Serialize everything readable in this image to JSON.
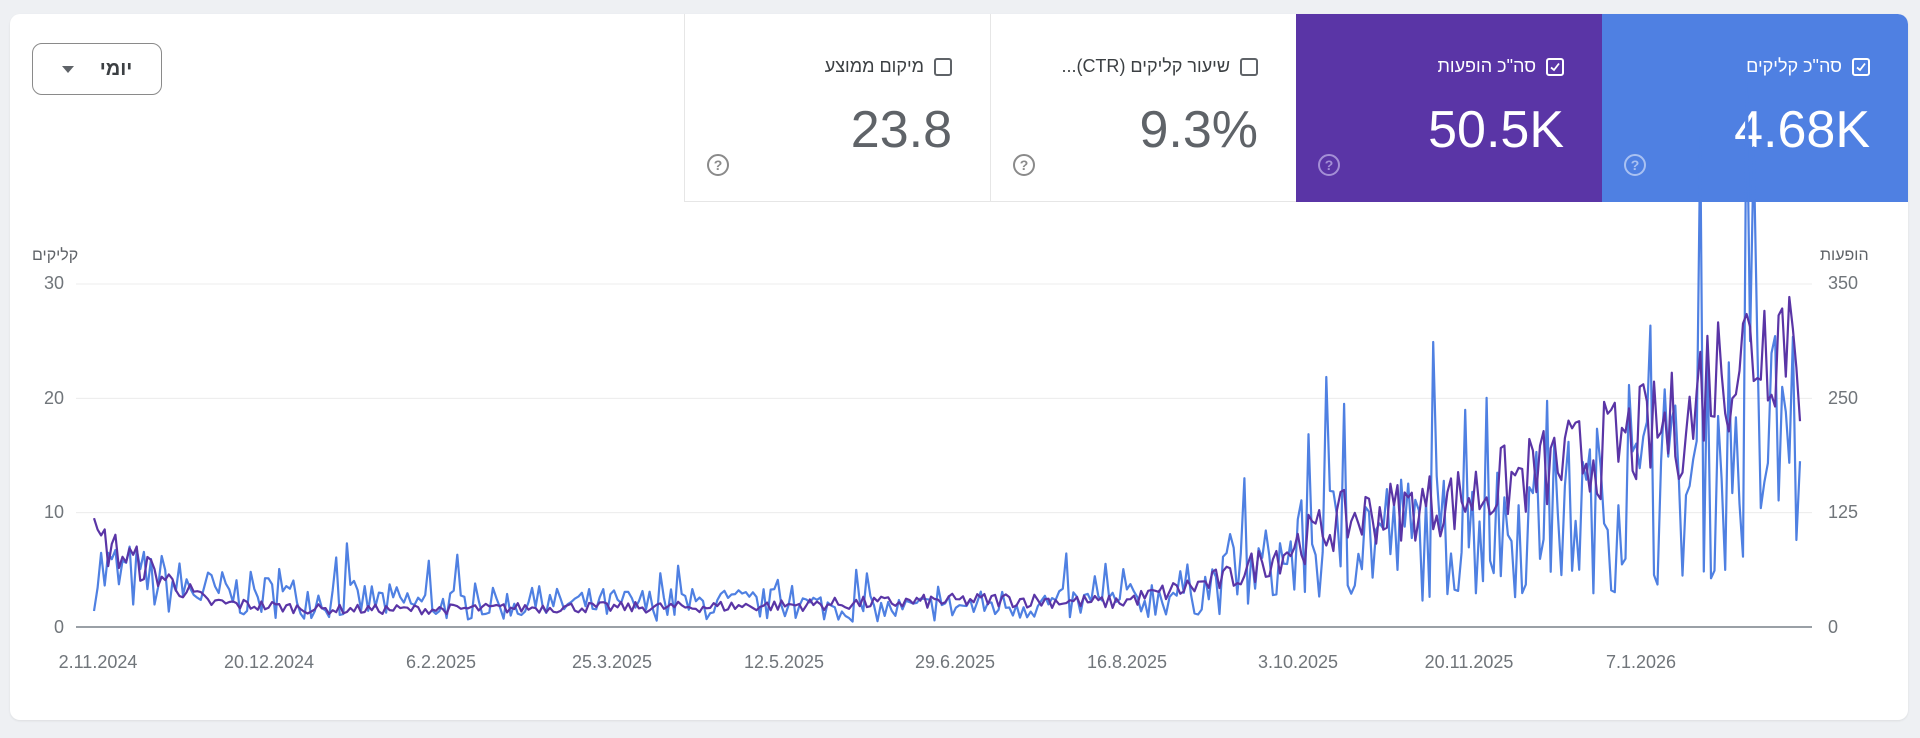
{
  "controls": {
    "granularity_label": "יומי"
  },
  "cards": [
    {
      "id": "clicks",
      "title": "סה\"כ קליקים",
      "value": "4.68K",
      "checked": true,
      "color": "#4f80e2"
    },
    {
      "id": "impressions",
      "title": "סה\"כ הופעות",
      "value": "50.5K",
      "checked": true,
      "color": "#5a35a6"
    },
    {
      "id": "ctr",
      "title": "שיעור קליקים (CTR)...",
      "value": "9.3%",
      "checked": false
    },
    {
      "id": "position",
      "title": "מיקום ממוצע",
      "value": "23.8",
      "checked": false
    }
  ],
  "help_glyph": "?",
  "chart_data": {
    "type": "line",
    "title": "",
    "xlabel": "",
    "ylabel_left": "קליקים",
    "ylabel_right": "הופעות",
    "y_left_ticks": [
      "0",
      "10",
      "20",
      "30"
    ],
    "y_right_ticks": [
      "0",
      "125",
      "250",
      "350"
    ],
    "ylim_left": [
      0,
      30
    ],
    "ylim_right": [
      0,
      350
    ],
    "x_tick_labels": [
      "2.11.2024",
      "20.12.2024",
      "6.2.2025",
      "25.3.2025",
      "12.5.2025",
      "29.6.2025",
      "16.8.2025",
      "3.10.2025",
      "20.11.2025",
      "7.1.2026"
    ],
    "grid": true,
    "legend_position": "cards-top",
    "series": [
      {
        "name": "סה\"כ קליקים",
        "axis": "left",
        "color": "#4f80e2",
        "monthly_approx": [
          {
            "period": "11.2024",
            "value": 5
          },
          {
            "period": "12.2024",
            "value": 3
          },
          {
            "period": "1.2025",
            "value": 2.5
          },
          {
            "period": "2.2025",
            "value": 2
          },
          {
            "period": "3.2025",
            "value": 2
          },
          {
            "period": "4.2025",
            "value": 2
          },
          {
            "period": "5.2025",
            "value": 2
          },
          {
            "period": "6.2025",
            "value": 1.5
          },
          {
            "period": "7.2025",
            "value": 2
          },
          {
            "period": "8.2025",
            "value": 2
          },
          {
            "period": "9.2025",
            "value": 4
          },
          {
            "period": "10.2025",
            "value": 8
          },
          {
            "period": "11.2025",
            "value": 8
          },
          {
            "period": "12.2025",
            "value": 10
          },
          {
            "period": "1.2026",
            "value": 12
          },
          {
            "period": "2.2026",
            "value": 15
          }
        ],
        "peak": 21,
        "last": 14.5
      },
      {
        "name": "סה\"כ הופעות",
        "axis": "right",
        "color": "#5a35a6",
        "monthly_approx": [
          {
            "period": "11.2024",
            "value": 90
          },
          {
            "period": "12.2024",
            "value": 25
          },
          {
            "period": "1.2025",
            "value": 18
          },
          {
            "period": "2.2025",
            "value": 18
          },
          {
            "period": "3.2025",
            "value": 20
          },
          {
            "period": "4.2025",
            "value": 20
          },
          {
            "period": "5.2025",
            "value": 22
          },
          {
            "period": "6.2025",
            "value": 25
          },
          {
            "period": "7.2025",
            "value": 28
          },
          {
            "period": "8.2025",
            "value": 25
          },
          {
            "period": "9.2025",
            "value": 50
          },
          {
            "period": "10.2025",
            "value": 110
          },
          {
            "period": "11.2025",
            "value": 130
          },
          {
            "period": "12.2025",
            "value": 170
          },
          {
            "period": "1.2026",
            "value": 210
          },
          {
            "period": "2.2026",
            "value": 280
          }
        ],
        "peak": 325,
        "last": 210
      }
    ]
  }
}
